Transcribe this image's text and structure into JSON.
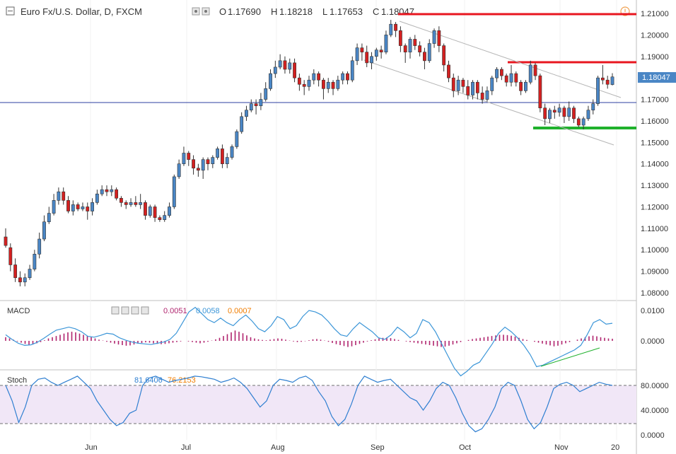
{
  "header": {
    "symbol": "Euro Fx/U.S. Dollar, D, FXCM",
    "open_label": "O",
    "open": "1.17690",
    "high_label": "H",
    "high": "1.18218",
    "low_label": "L",
    "low": "1.17653",
    "close_label": "C",
    "close": "1.18047"
  },
  "price_tag": "1.18047",
  "macd_panel": {
    "title": "MACD",
    "v1": "0.0051",
    "v2": "0.0058",
    "v3": "0.0007"
  },
  "stoch_panel": {
    "title": "Stoch",
    "v1": "81.6406",
    "v2": "76.2153"
  },
  "colors": {
    "up": "#4a86c5",
    "down": "#d42020",
    "hline": "#2c3fa0",
    "resist": "#e8161f",
    "support": "#1fb12c",
    "macd_line": "#3c96d8",
    "macd_hist": "#b0246e",
    "stoch_line": "#2f7fd1",
    "stoch_band": "#f1e7f7"
  },
  "chart_data": {
    "type": "candlestick",
    "price_axis": [
      "1.21000",
      "1.20000",
      "1.19000",
      "1.18000",
      "1.17000",
      "1.16000",
      "1.15000",
      "1.14000",
      "1.13000",
      "1.12000",
      "1.11000",
      "1.10000",
      "1.09000",
      "1.08000"
    ],
    "macd_axis": [
      "0.0100",
      "0.0000"
    ],
    "stoch_axis": [
      "80.0000",
      "40.0000",
      "0.0000"
    ],
    "time_axis": [
      "Jun",
      "Jul",
      "Aug",
      "Sep",
      "Oct",
      "Nov",
      "20"
    ],
    "candles": [
      [
        1.106,
        1.102,
        1.11,
        1.101
      ],
      [
        1.101,
        1.093,
        1.103,
        1.09
      ],
      [
        1.093,
        1.087,
        1.096,
        1.085
      ],
      [
        1.087,
        1.085,
        1.09,
        1.083
      ],
      [
        1.085,
        1.087,
        1.089,
        1.083
      ],
      [
        1.087,
        1.091,
        1.093,
        1.086
      ],
      [
        1.091,
        1.098,
        1.1,
        1.09
      ],
      [
        1.098,
        1.105,
        1.108,
        1.096
      ],
      [
        1.105,
        1.113,
        1.116,
        1.104
      ],
      [
        1.113,
        1.117,
        1.12,
        1.112
      ],
      [
        1.117,
        1.123,
        1.126,
        1.116
      ],
      [
        1.123,
        1.127,
        1.129,
        1.121
      ],
      [
        1.127,
        1.123,
        1.129,
        1.121
      ],
      [
        1.123,
        1.118,
        1.125,
        1.117
      ],
      [
        1.118,
        1.121,
        1.123,
        1.116
      ],
      [
        1.121,
        1.119,
        1.122,
        1.118
      ],
      [
        1.119,
        1.12,
        1.122,
        1.118
      ],
      [
        1.12,
        1.118,
        1.122,
        1.114
      ],
      [
        1.118,
        1.122,
        1.124,
        1.116
      ],
      [
        1.122,
        1.126,
        1.128,
        1.121
      ],
      [
        1.126,
        1.128,
        1.13,
        1.125
      ],
      [
        1.128,
        1.127,
        1.13,
        1.125
      ],
      [
        1.127,
        1.128,
        1.13,
        1.125
      ],
      [
        1.128,
        1.124,
        1.129,
        1.123
      ],
      [
        1.124,
        1.122,
        1.125,
        1.12
      ],
      [
        1.122,
        1.121,
        1.123,
        1.119
      ],
      [
        1.121,
        1.122,
        1.124,
        1.12
      ],
      [
        1.122,
        1.121,
        1.125,
        1.12
      ],
      [
        1.121,
        1.122,
        1.126,
        1.119
      ],
      [
        1.122,
        1.116,
        1.123,
        1.114
      ],
      [
        1.116,
        1.12,
        1.121,
        1.115
      ],
      [
        1.12,
        1.115,
        1.121,
        1.113
      ],
      [
        1.115,
        1.114,
        1.116,
        1.113
      ],
      [
        1.114,
        1.116,
        1.118,
        1.113
      ],
      [
        1.116,
        1.12,
        1.122,
        1.115
      ],
      [
        1.12,
        1.134,
        1.135,
        1.119
      ],
      [
        1.134,
        1.14,
        1.142,
        1.133
      ],
      [
        1.14,
        1.145,
        1.148,
        1.139
      ],
      [
        1.145,
        1.142,
        1.146,
        1.139
      ],
      [
        1.142,
        1.138,
        1.144,
        1.135
      ],
      [
        1.138,
        1.137,
        1.14,
        1.134
      ],
      [
        1.137,
        1.142,
        1.143,
        1.133
      ],
      [
        1.142,
        1.14,
        1.143,
        1.137
      ],
      [
        1.14,
        1.143,
        1.144,
        1.138
      ],
      [
        1.143,
        1.147,
        1.148,
        1.142
      ],
      [
        1.147,
        1.14,
        1.149,
        1.138
      ],
      [
        1.14,
        1.143,
        1.145,
        1.138
      ],
      [
        1.143,
        1.148,
        1.149,
        1.142
      ],
      [
        1.148,
        1.155,
        1.156,
        1.147
      ],
      [
        1.155,
        1.162,
        1.164,
        1.154
      ],
      [
        1.162,
        1.165,
        1.167,
        1.16
      ],
      [
        1.165,
        1.168,
        1.17,
        1.164
      ],
      [
        1.168,
        1.167,
        1.17,
        1.163
      ],
      [
        1.167,
        1.17,
        1.173,
        1.165
      ],
      [
        1.17,
        1.175,
        1.178,
        1.169
      ],
      [
        1.175,
        1.182,
        1.184,
        1.174
      ],
      [
        1.182,
        1.185,
        1.188,
        1.18
      ],
      [
        1.185,
        1.188,
        1.191,
        1.184
      ],
      [
        1.188,
        1.184,
        1.19,
        1.182
      ],
      [
        1.184,
        1.187,
        1.189,
        1.182
      ],
      [
        1.187,
        1.18,
        1.189,
        1.178
      ],
      [
        1.18,
        1.177,
        1.182,
        1.174
      ],
      [
        1.177,
        1.176,
        1.179,
        1.172
      ],
      [
        1.176,
        1.179,
        1.181,
        1.174
      ],
      [
        1.179,
        1.182,
        1.184,
        1.177
      ],
      [
        1.182,
        1.179,
        1.183,
        1.176
      ],
      [
        1.179,
        1.175,
        1.18,
        1.17
      ],
      [
        1.175,
        1.178,
        1.18,
        1.173
      ],
      [
        1.178,
        1.175,
        1.179,
        1.172
      ],
      [
        1.175,
        1.179,
        1.181,
        1.174
      ],
      [
        1.179,
        1.182,
        1.183,
        1.177
      ],
      [
        1.182,
        1.179,
        1.183,
        1.177
      ],
      [
        1.179,
        1.188,
        1.19,
        1.178
      ],
      [
        1.188,
        1.194,
        1.196,
        1.186
      ],
      [
        1.194,
        1.192,
        1.196,
        1.188
      ],
      [
        1.192,
        1.187,
        1.195,
        1.185
      ],
      [
        1.187,
        1.19,
        1.192,
        1.184
      ],
      [
        1.19,
        1.193,
        1.194,
        1.188
      ],
      [
        1.193,
        1.192,
        1.195,
        1.189
      ],
      [
        1.192,
        1.2,
        1.202,
        1.191
      ],
      [
        1.2,
        1.205,
        1.207,
        1.199
      ],
      [
        1.205,
        1.202,
        1.206,
        1.199
      ],
      [
        1.202,
        1.195,
        1.204,
        1.192
      ],
      [
        1.195,
        1.192,
        1.196,
        1.187
      ],
      [
        1.192,
        1.198,
        1.199,
        1.189
      ],
      [
        1.198,
        1.195,
        1.2,
        1.193
      ],
      [
        1.195,
        1.192,
        1.197,
        1.19
      ],
      [
        1.192,
        1.188,
        1.194,
        1.184
      ],
      [
        1.188,
        1.196,
        1.198,
        1.187
      ],
      [
        1.196,
        1.202,
        1.203,
        1.194
      ],
      [
        1.202,
        1.195,
        1.204,
        1.192
      ],
      [
        1.195,
        1.186,
        1.196,
        1.183
      ],
      [
        1.186,
        1.18,
        1.188,
        1.178
      ],
      [
        1.18,
        1.174,
        1.182,
        1.171
      ],
      [
        1.174,
        1.179,
        1.181,
        1.172
      ],
      [
        1.179,
        1.176,
        1.18,
        1.173
      ],
      [
        1.176,
        1.172,
        1.179,
        1.17
      ],
      [
        1.172,
        1.178,
        1.179,
        1.17
      ],
      [
        1.178,
        1.173,
        1.179,
        1.17
      ],
      [
        1.173,
        1.17,
        1.176,
        1.168
      ],
      [
        1.17,
        1.174,
        1.176,
        1.169
      ],
      [
        1.174,
        1.18,
        1.181,
        1.172
      ],
      [
        1.18,
        1.184,
        1.185,
        1.178
      ],
      [
        1.184,
        1.181,
        1.185,
        1.179
      ],
      [
        1.181,
        1.178,
        1.182,
        1.176
      ],
      [
        1.178,
        1.182,
        1.186,
        1.176
      ],
      [
        1.182,
        1.178,
        1.183,
        1.176
      ],
      [
        1.178,
        1.174,
        1.179,
        1.172
      ],
      [
        1.174,
        1.178,
        1.179,
        1.173
      ],
      [
        1.178,
        1.186,
        1.188,
        1.177
      ],
      [
        1.186,
        1.181,
        1.187,
        1.179
      ],
      [
        1.181,
        1.166,
        1.182,
        1.164
      ],
      [
        1.166,
        1.161,
        1.168,
        1.158
      ],
      [
        1.161,
        1.165,
        1.166,
        1.159
      ],
      [
        1.165,
        1.164,
        1.167,
        1.161
      ],
      [
        1.164,
        1.166,
        1.168,
        1.162
      ],
      [
        1.166,
        1.162,
        1.167,
        1.159
      ],
      [
        1.162,
        1.166,
        1.169,
        1.16
      ],
      [
        1.166,
        1.161,
        1.167,
        1.159
      ],
      [
        1.161,
        1.158,
        1.162,
        1.157
      ],
      [
        1.158,
        1.161,
        1.162,
        1.156
      ],
      [
        1.161,
        1.165,
        1.167,
        1.16
      ],
      [
        1.165,
        1.168,
        1.17,
        1.163
      ],
      [
        1.168,
        1.18,
        1.181,
        1.167
      ],
      [
        1.18,
        1.179,
        1.186,
        1.177
      ],
      [
        1.179,
        1.177,
        1.181,
        1.175
      ],
      [
        1.1769,
        1.18047,
        1.18218,
        1.17653
      ]
    ],
    "macd_line": [
      0.002,
      0.0005,
      -0.0008,
      -0.0015,
      -0.0013,
      -0.0005,
      0.0008,
      0.0022,
      0.0035,
      0.004,
      0.0045,
      0.004,
      0.003,
      0.0015,
      0.0012,
      0.0018,
      0.0025,
      0.0022,
      0.001,
      0.0002,
      -0.0004,
      -0.0008,
      -0.001,
      -0.0012,
      -0.0008,
      -0.0004,
      0.0005,
      0.0025,
      0.006,
      0.0095,
      0.011,
      0.009,
      0.007,
      0.006,
      0.0075,
      0.006,
      0.005,
      0.007,
      0.0085,
      0.0065,
      0.004,
      0.003,
      0.005,
      0.008,
      0.007,
      0.004,
      0.005,
      0.008,
      0.01,
      0.0095,
      0.0085,
      0.0065,
      0.004,
      0.002,
      0.0015,
      0.004,
      0.006,
      0.0045,
      0.003,
      0.001,
      0.0005,
      0.002,
      0.0045,
      0.003,
      0.001,
      0.0025,
      0.007,
      0.006,
      0.003,
      -0.001,
      -0.005,
      -0.009,
      -0.0115,
      -0.01,
      -0.008,
      -0.007,
      -0.004,
      -0.001,
      0.0025,
      0.0045,
      0.003,
      0.001,
      -0.0015,
      -0.0045,
      -0.0085,
      -0.008,
      -0.007,
      -0.006,
      -0.005,
      -0.004,
      -0.003,
      -0.0015,
      0.002,
      0.006,
      0.007,
      0.0055,
      0.0058
    ],
    "macd_hist": [
      0.0012,
      0.0008,
      0.0004,
      -0.0002,
      -0.0006,
      -0.001,
      -0.0014,
      -0.0012,
      -0.0008,
      -0.0004,
      0.0002,
      0.0008,
      0.0012,
      0.0016,
      0.002,
      0.0024,
      0.0028,
      0.003,
      0.0028,
      0.0024,
      0.002,
      0.0016,
      0.0012,
      0.0008,
      0.0004,
      0.0001,
      -0.0003,
      -0.0006,
      -0.0009,
      -0.0012,
      -0.0014,
      -0.0016,
      -0.0015,
      -0.0012,
      -0.0009,
      -0.0007,
      -0.0005,
      -0.0006,
      -0.0008,
      -0.001,
      -0.0011,
      -0.001,
      -0.0008,
      -0.0006,
      -0.0004,
      -0.0002,
      0.0,
      -0.0002,
      -0.0004,
      -0.0006,
      -0.0008,
      -0.0006,
      -0.0003,
      0.0001,
      0.0005,
      0.001,
      0.0016,
      0.0022,
      0.0028,
      0.0034,
      0.003,
      0.0025,
      0.0018,
      0.0012,
      0.0008,
      0.0005,
      0.0003,
      0.0002,
      0.0004,
      0.0006,
      0.0008,
      0.0007,
      0.0004,
      0.0001,
      -0.0002,
      -0.0004,
      -0.0003,
      -0.0001,
      0.0002,
      0.0005,
      0.0006,
      0.0004,
      0.0001,
      -0.0003,
      -0.0007,
      -0.0011,
      -0.0014,
      -0.0017,
      -0.002,
      -0.0018,
      -0.0014,
      -0.001,
      -0.0006,
      -0.0002,
      0.0002,
      0.0005,
      0.0008,
      0.001,
      0.0011,
      0.0009,
      0.0006,
      0.0003,
      0.0,
      -0.0002,
      -0.0004,
      -0.0006,
      -0.0008,
      -0.001,
      -0.0012,
      -0.0014,
      -0.0016,
      -0.0018,
      -0.002,
      -0.0019,
      -0.0016,
      -0.0012,
      -0.0008,
      -0.0004,
      0.0,
      0.0003,
      0.0006,
      0.0008,
      0.001,
      0.0012,
      0.0014,
      0.0016,
      0.0018,
      0.002,
      0.002,
      0.0019,
      0.0017,
      0.0014,
      0.001,
      0.0006,
      0.0003,
      0.0,
      -0.0003,
      -0.0006,
      -0.0009,
      -0.0012,
      -0.0015,
      -0.0018,
      -0.0016,
      -0.0012,
      -0.0008,
      -0.0004,
      0.0,
      0.0004,
      0.0008,
      0.0012,
      0.0015,
      0.0017,
      0.0015,
      0.0012,
      0.001,
      0.0008,
      0.0007
    ],
    "stoch_line": [
      80,
      55,
      20,
      45,
      80,
      90,
      92,
      85,
      80,
      85,
      90,
      95,
      85,
      75,
      55,
      40,
      25,
      15,
      20,
      35,
      40,
      80,
      92,
      95,
      90,
      85,
      88,
      90,
      92,
      95,
      94,
      92,
      90,
      85,
      88,
      92,
      85,
      75,
      60,
      45,
      55,
      80,
      90,
      88,
      85,
      92,
      95,
      88,
      70,
      55,
      30,
      15,
      25,
      50,
      80,
      95,
      90,
      85,
      88,
      90,
      80,
      70,
      60,
      55,
      40,
      55,
      75,
      85,
      80,
      60,
      35,
      15,
      5,
      10,
      25,
      45,
      75,
      85,
      80,
      55,
      25,
      10,
      20,
      45,
      75,
      82,
      85,
      80,
      70,
      75,
      80,
      85,
      82,
      80
    ]
  }
}
